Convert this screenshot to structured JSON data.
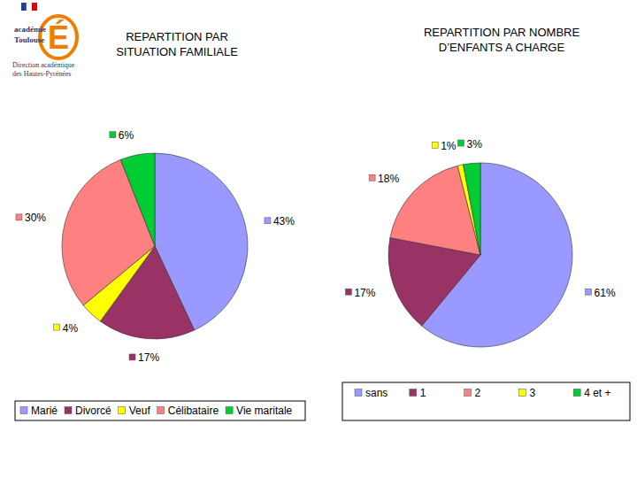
{
  "header": {
    "emblem": "É",
    "lines": [
      "académie",
      "Toulouse",
      "Direction académique",
      "des Hautes-Pyrénées"
    ]
  },
  "chart_data": [
    {
      "type": "pie",
      "title": "REPARTITION PAR SITUATION FAMILIALE",
      "categories": [
        "Marié",
        "Divorcé",
        "Veuf",
        "Célibataire",
        "Vie maritale"
      ],
      "values": [
        43,
        17,
        4,
        30,
        6
      ],
      "value_labels": [
        "43%",
        "17%",
        "4%",
        "30%",
        "6%"
      ],
      "colors": [
        "#9999ff",
        "#993366",
        "#ffff00",
        "#ff8080",
        "#00cc33"
      ],
      "legend": "bottom",
      "data_labels": true
    },
    {
      "type": "pie",
      "title": "REPARTITION PAR NOMBRE D’ENFANTS A CHARGE",
      "categories": [
        "sans",
        "1",
        "2",
        "3",
        "4 et +"
      ],
      "values": [
        61,
        17,
        18,
        1,
        3
      ],
      "value_labels": [
        "61%",
        "17%",
        "18%",
        "1%",
        "3%"
      ],
      "colors": [
        "#9999ff",
        "#993366",
        "#ff8080",
        "#ffff00",
        "#00cc33"
      ],
      "legend": "bottom",
      "data_labels": true
    }
  ]
}
